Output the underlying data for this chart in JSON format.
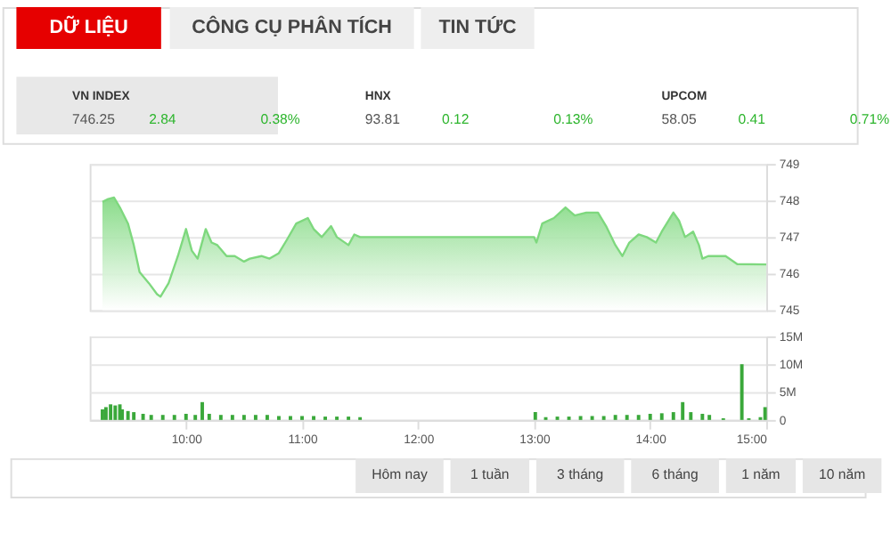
{
  "chart_data": [
    {
      "type": "other",
      "annotations": [
        "DỮ LIỆU",
        "CÔNG CỤ PHÂN TÍCH",
        "TIN TỨC",
        "VN INDEX",
        "746.25",
        "2.84",
        "0.38%",
        "HNX",
        "93.81",
        "0.12",
        "0.13%",
        "UPCOM",
        "58.05",
        "0.41",
        "0.71%"
      ]
    },
    {
      "type": "area",
      "color": "#7ed87e",
      "xlim": [
        9.17,
        15
      ],
      "ylim": [
        745,
        749
      ],
      "yticks": [
        745,
        746,
        747,
        748,
        749
      ],
      "grid": "y",
      "tick_labels": "y",
      "x": [
        9.28,
        9.33,
        9.38,
        9.43,
        9.5,
        9.55,
        9.6,
        9.68,
        9.75,
        9.78,
        9.85,
        9.93,
        10.0,
        10.05,
        10.1,
        10.17,
        10.22,
        10.27,
        10.35,
        10.42,
        10.5,
        10.55,
        10.65,
        10.72,
        10.8,
        10.87,
        10.95,
        11.05,
        11.1,
        11.17,
        11.25,
        11.3,
        11.4,
        11.45,
        11.5,
        13.0,
        13.02,
        13.07,
        13.17,
        13.27,
        13.35,
        13.45,
        13.55,
        13.62,
        13.7,
        13.76,
        13.82,
        13.9,
        13.97,
        14.05,
        14.1,
        14.2,
        14.25,
        14.3,
        14.37,
        14.42,
        14.45,
        14.5,
        14.65,
        14.75,
        15.0
      ],
      "values": [
        747.96,
        748.04,
        748.08,
        747.81,
        747.37,
        746.78,
        746.04,
        745.74,
        745.44,
        745.37,
        745.74,
        746.48,
        747.22,
        746.63,
        746.41,
        747.22,
        746.85,
        746.78,
        746.48,
        746.48,
        746.33,
        746.41,
        746.48,
        746.41,
        746.56,
        746.93,
        747.37,
        747.52,
        747.22,
        747.0,
        747.3,
        747.0,
        746.78,
        747.07,
        747.0,
        747.0,
        746.85,
        747.37,
        747.52,
        747.81,
        747.59,
        747.67,
        747.67,
        747.3,
        746.78,
        746.48,
        746.85,
        747.07,
        747.0,
        746.85,
        747.15,
        747.67,
        747.44,
        747.0,
        747.15,
        746.78,
        746.41,
        746.48,
        746.48,
        746.26,
        746.25
      ]
    },
    {
      "type": "bar",
      "color": "#3aa83a",
      "xlim": [
        9.17,
        15
      ],
      "xticks": [
        {
          "value": 10,
          "label": "10:00"
        },
        {
          "value": 11,
          "label": "11:00"
        },
        {
          "value": 12,
          "label": "12:00"
        },
        {
          "value": 13,
          "label": "13:00"
        },
        {
          "value": 14,
          "label": "14:00"
        },
        {
          "value": 15,
          "label": "15:00"
        }
      ],
      "ylim": [
        0,
        15
      ],
      "yticks": [
        {
          "value": 0,
          "label": "0"
        },
        {
          "value": 5,
          "label": "5M"
        },
        {
          "value": 10,
          "label": "10M"
        },
        {
          "value": 15,
          "label": "15M"
        }
      ],
      "grid": "y",
      "x": [
        9.28,
        9.31,
        9.35,
        9.39,
        9.43,
        9.45,
        9.5,
        9.55,
        9.63,
        9.7,
        9.8,
        9.9,
        10.0,
        10.08,
        10.14,
        10.2,
        10.3,
        10.4,
        10.5,
        10.6,
        10.7,
        10.8,
        10.9,
        11.0,
        11.1,
        11.2,
        11.3,
        11.4,
        11.5,
        13.01,
        13.1,
        13.2,
        13.3,
        13.4,
        13.5,
        13.6,
        13.7,
        13.8,
        13.9,
        14.0,
        14.1,
        14.2,
        14.28,
        14.35,
        14.45,
        14.51,
        14.63,
        14.79,
        14.85,
        14.95,
        14.99
      ],
      "values": [
        1.9,
        2.3,
        2.8,
        2.6,
        2.8,
        1.9,
        1.6,
        1.4,
        1.1,
        0.9,
        0.9,
        0.9,
        1.1,
        0.9,
        3.2,
        1.1,
        0.9,
        0.9,
        0.9,
        0.9,
        0.9,
        0.7,
        0.7,
        0.7,
        0.7,
        0.6,
        0.6,
        0.6,
        0.5,
        1.4,
        0.5,
        0.6,
        0.6,
        0.7,
        0.7,
        0.7,
        0.9,
        0.9,
        0.9,
        1.1,
        1.2,
        1.4,
        3.2,
        1.4,
        1.1,
        0.9,
        0.3,
        10.0,
        0.3,
        0.5,
        2.3
      ]
    },
    {
      "type": "other",
      "annotations": [
        "Hôm nay",
        "1 tuần",
        "3 tháng",
        "6 tháng",
        "1 năm",
        "10 năm"
      ]
    }
  ]
}
